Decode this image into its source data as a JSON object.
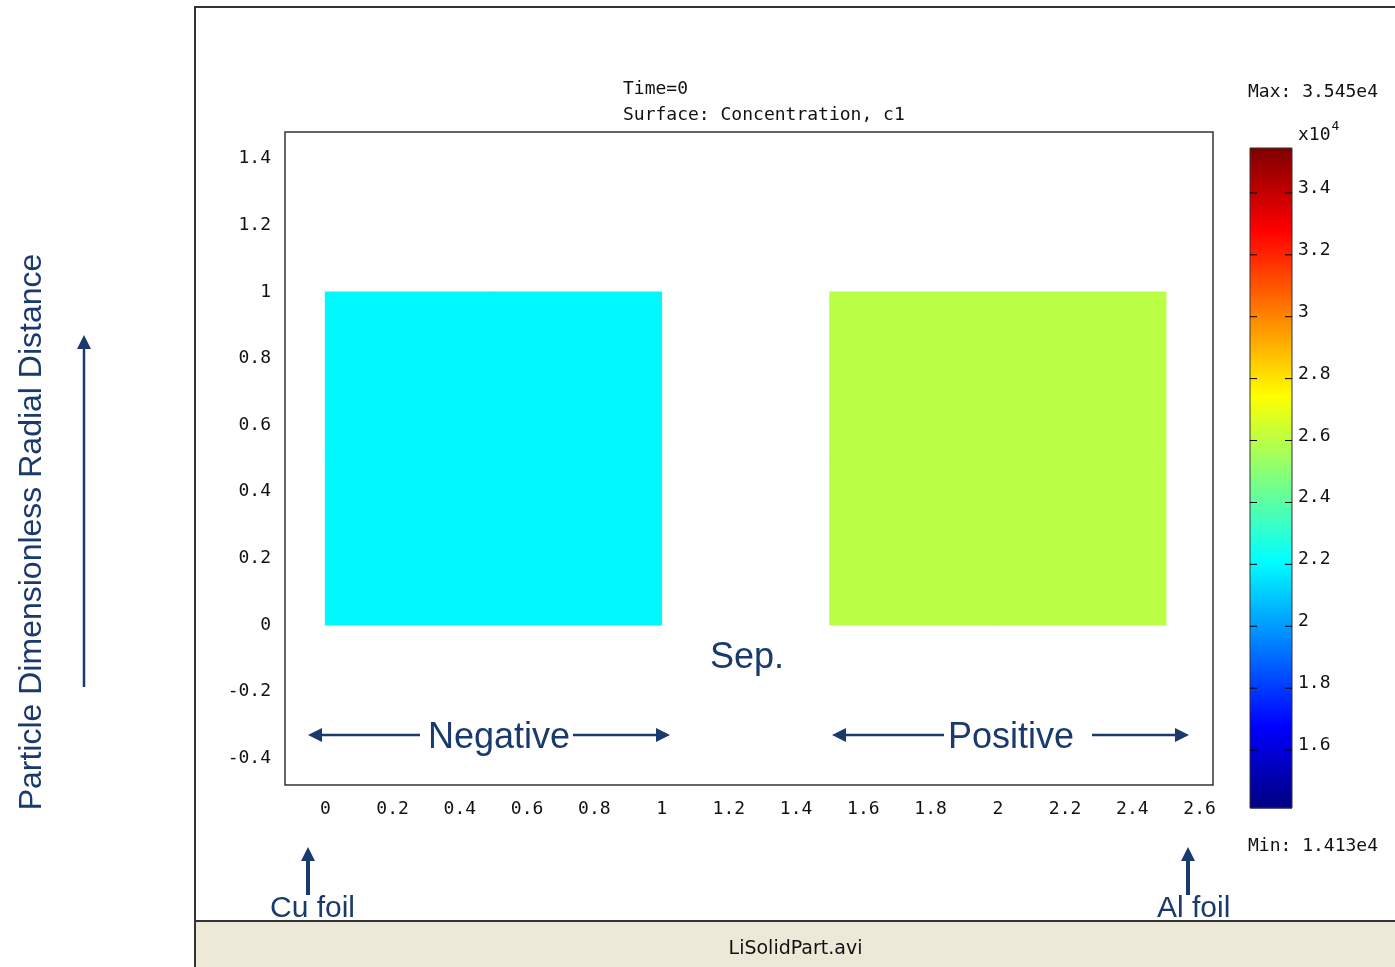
{
  "chart_data": {
    "type": "heatmap",
    "title": "Time=0",
    "subtitle": "Surface: Concentration, c1",
    "clabel": "x10$^{4}$",
    "x": [
      0.25,
      0.75,
      1.75,
      2.25
    ],
    "y": [
      0.25,
      0.75
    ],
    "cells": [
      [
        2.2,
        2.2,
        2.6,
        2.6
      ],
      [
        2.2,
        2.2,
        2.6,
        2.6
      ]
    ],
    "clim": [
      1.413,
      3.545
    ],
    "cticks": [
      1.6,
      1.8,
      2,
      2.2,
      2.4,
      2.6,
      2.8,
      3,
      3.2,
      3.4
    ],
    "xlim": [
      -0.12,
      2.64
    ],
    "ylim": [
      -0.48,
      1.48
    ],
    "xticks": [
      0,
      0.2,
      0.4,
      0.6,
      0.8,
      1,
      1.2,
      1.4,
      1.6,
      1.8,
      2,
      2.2,
      2.4,
      2.6
    ],
    "yticks": [
      -0.4,
      -0.2,
      0,
      0.2,
      0.4,
      0.6,
      0.8,
      1,
      1.2,
      1.4
    ],
    "grid": false,
    "annotations": [
      "Particle Dimensionless Radial Distance",
      "Sep.",
      "Negative",
      "Positive",
      "Max: 3.545e4",
      "Min: 1.413e4",
      "Cu foil",
      "Al foil",
      "LiSolidPart.avi"
    ]
  }
}
